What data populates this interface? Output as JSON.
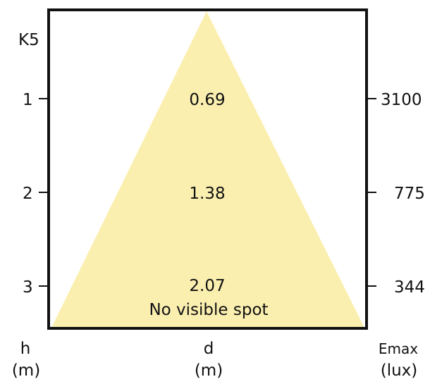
{
  "beam_code": "K5",
  "fill_color": "#FBEFB0",
  "rows": [
    {
      "h": "1",
      "d": "0.69",
      "emax": "3100"
    },
    {
      "h": "2",
      "d": "1.38",
      "emax": "775"
    },
    {
      "h": "3",
      "d": "2.07",
      "emax": "344"
    }
  ],
  "note": "No visible spot",
  "axes": {
    "h": {
      "symbol": "h",
      "unit": "(m)"
    },
    "d": {
      "symbol": "d",
      "unit": "(m)"
    },
    "emax": {
      "symbol": "Emax",
      "unit": "(lux)"
    }
  }
}
